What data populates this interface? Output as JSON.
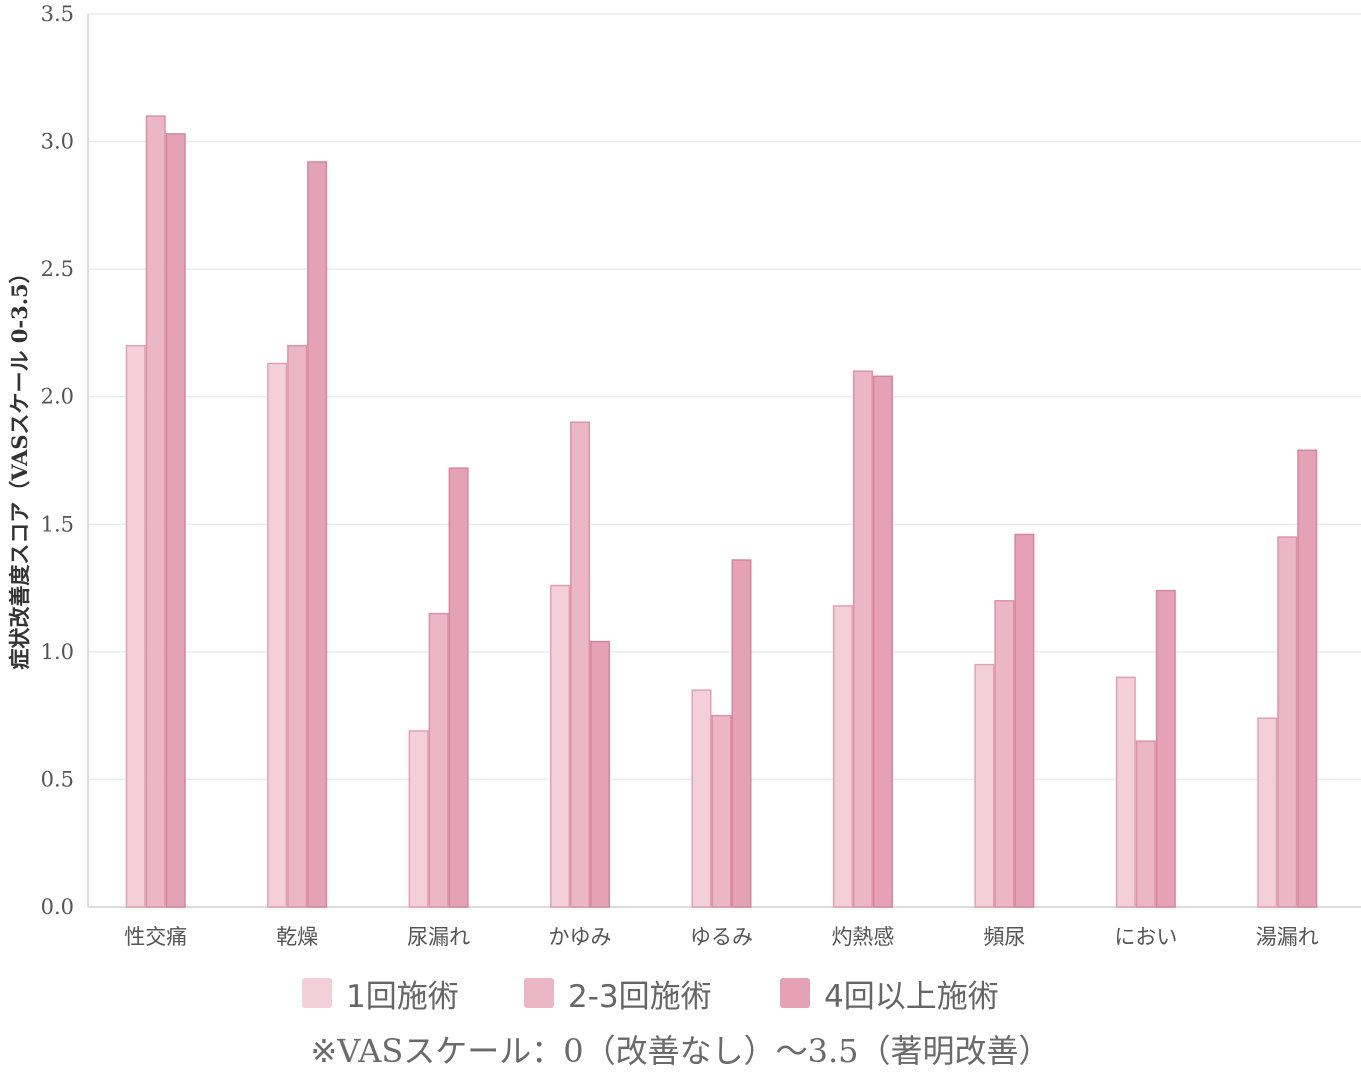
{
  "chart_data": {
    "type": "bar",
    "ylabel": "症状改善度スコア（VASスケール 0-3.5）",
    "ylim": [
      0,
      3.5
    ],
    "yticks": [
      "0.0",
      "0.5",
      "1.0",
      "1.5",
      "2.0",
      "2.5",
      "3.0",
      "3.5"
    ],
    "grid": true,
    "legend_position": "bottom",
    "categories": [
      "性交痛",
      "乾燥",
      "尿漏れ",
      "かゆみ",
      "ゆるみ",
      "灼熱感",
      "頻尿",
      "におい",
      "湯漏れ"
    ],
    "series": [
      {
        "name": "1回施術",
        "color": "#f2cfd9",
        "border": "#e3a0b5",
        "values": [
          2.2,
          2.13,
          0.69,
          1.26,
          0.85,
          1.18,
          0.95,
          0.9,
          0.74
        ]
      },
      {
        "name": "2-3回施術",
        "color": "#ebb7c7",
        "border": "#dd92aa",
        "values": [
          3.1,
          2.2,
          1.15,
          1.9,
          0.75,
          2.1,
          1.2,
          0.65,
          1.45
        ]
      },
      {
        "name": "4回以上施術",
        "color": "#e5a2b7",
        "border": "#d8849f",
        "values": [
          3.03,
          2.92,
          1.72,
          1.04,
          1.36,
          2.08,
          1.46,
          1.24,
          1.79
        ]
      }
    ]
  },
  "footnote": "※VASスケール：0（改善なし）〜3.5（著明改善）"
}
